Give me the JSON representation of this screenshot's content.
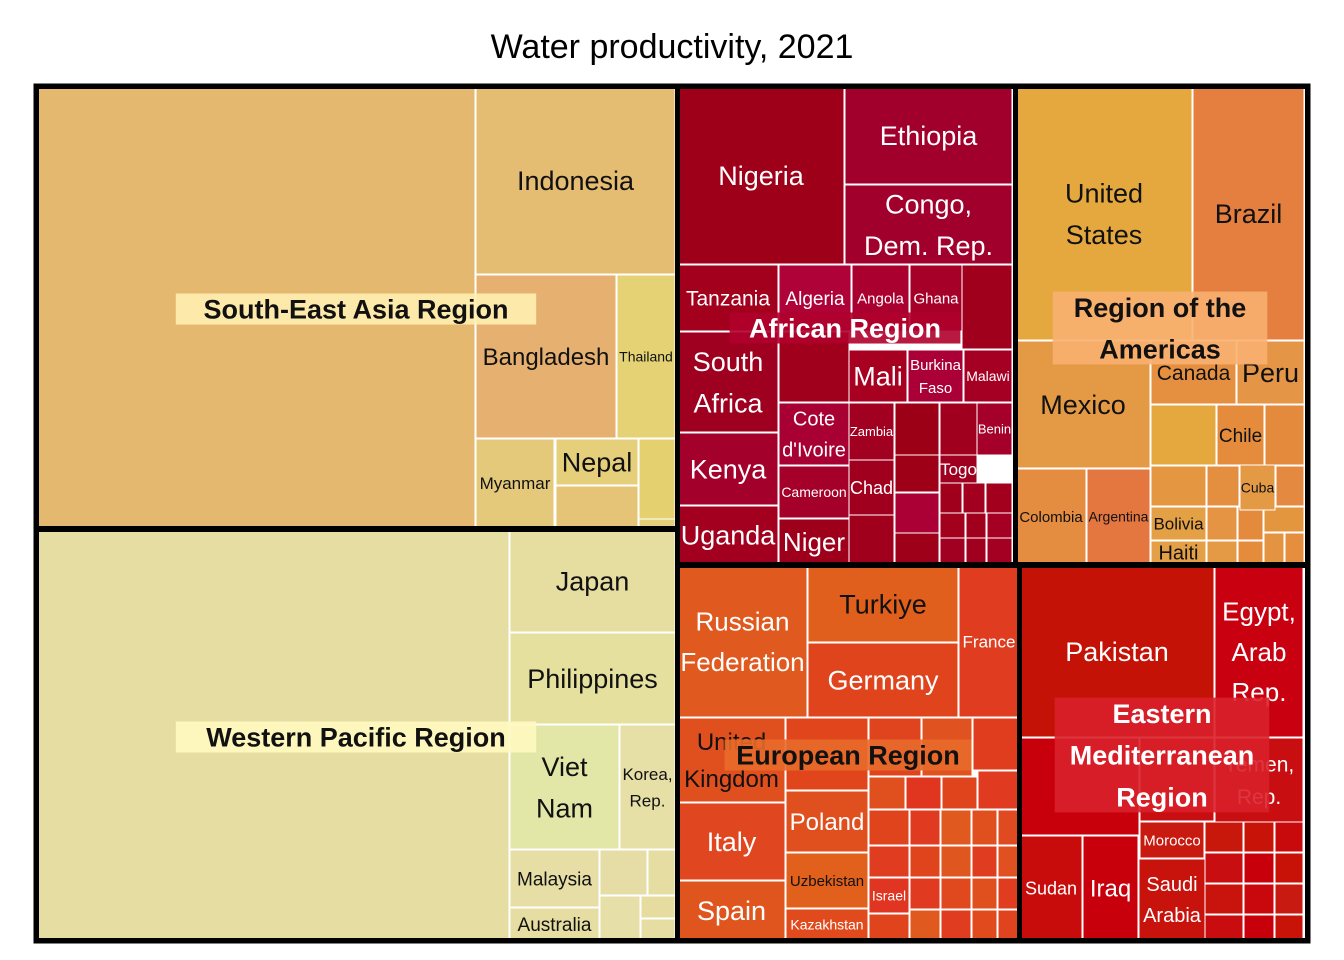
{
  "chart_data": {
    "type": "treemap",
    "title": "Water productivity, 2021",
    "regions": [
      {
        "name": "South-East Asia Region",
        "color": "#e5b870",
        "countries": [
          {
            "name": "",
            "color": "#e5b870"
          },
          {
            "name": "Indonesia",
            "color": "#e5bd72"
          },
          {
            "name": "Bangladesh",
            "color": "#e5b070"
          },
          {
            "name": "Thailand",
            "color": "#e5d274"
          },
          {
            "name": "Myanmar",
            "color": "#e5c97a"
          },
          {
            "name": "Nepal",
            "color": "#e5cf7b"
          }
        ]
      },
      {
        "name": "Western Pacific Region",
        "color": "#e6dda2",
        "countries": [
          {
            "name": "",
            "color": "#e6dda2"
          },
          {
            "name": "Japan",
            "color": "#e6dda0"
          },
          {
            "name": "Philippines",
            "color": "#e6e09e"
          },
          {
            "name": "Viet Nam",
            "color": "#e2e6a7"
          },
          {
            "name": "Korea, Rep.",
            "color": "#e6dfa6"
          },
          {
            "name": "Malaysia",
            "color": "#e6dea4"
          },
          {
            "name": "Australia",
            "color": "#e6dda2"
          }
        ]
      },
      {
        "name": "African Region",
        "color": "#a3001e",
        "countries": [
          {
            "name": "Nigeria",
            "color": "#9f0019"
          },
          {
            "name": "Ethiopia",
            "color": "#a2002c"
          },
          {
            "name": "Congo, Dem. Rep.",
            "color": "#a1002c"
          },
          {
            "name": "Tanzania",
            "color": "#a2001c"
          },
          {
            "name": "Algeria",
            "color": "#ae0238"
          },
          {
            "name": "Angola",
            "color": "#a90030"
          },
          {
            "name": "Ghana",
            "color": "#a60029"
          },
          {
            "name": "South Africa",
            "color": "#9f0020"
          },
          {
            "name": "Mali",
            "color": "#a80020"
          },
          {
            "name": "Burkina Faso",
            "color": "#aa0037"
          },
          {
            "name": "Malawi",
            "color": "#a50024"
          },
          {
            "name": "Cote d'Ivoire",
            "color": "#a90033"
          },
          {
            "name": "Zambia",
            "color": "#a20020"
          },
          {
            "name": "Benin",
            "color": "#a50029"
          },
          {
            "name": "Kenya",
            "color": "#a3002c"
          },
          {
            "name": "Cameroon",
            "color": "#a4002a"
          },
          {
            "name": "Chad",
            "color": "#a0001e"
          },
          {
            "name": "Togo",
            "color": "#a00020"
          },
          {
            "name": "Uganda",
            "color": "#a2001e"
          },
          {
            "name": "Niger",
            "color": "#9e001c"
          }
        ]
      },
      {
        "name": "Region of the Americas",
        "color": "#e48a3e",
        "countries": [
          {
            "name": "United States",
            "color": "#e4a83e"
          },
          {
            "name": "Brazil",
            "color": "#e47f40"
          },
          {
            "name": "Mexico",
            "color": "#e49a44"
          },
          {
            "name": "Canada",
            "color": "#e49040"
          },
          {
            "name": "Peru",
            "color": "#e49545"
          },
          {
            "name": "Chile",
            "color": "#e48c3c"
          },
          {
            "name": "Cuba",
            "color": "#e49944"
          },
          {
            "name": "Colombia",
            "color": "#e48c3f"
          },
          {
            "name": "Argentina",
            "color": "#e47640"
          },
          {
            "name": "Bolivia",
            "color": "#e4a045"
          },
          {
            "name": "Haiti",
            "color": "#e4a047"
          }
        ]
      },
      {
        "name": "European Region",
        "color": "#e04f22",
        "countries": [
          {
            "name": "Russian Federation",
            "color": "#e05a1f"
          },
          {
            "name": "Turkiye",
            "color": "#e05f1c"
          },
          {
            "name": "Germany",
            "color": "#e0441c"
          },
          {
            "name": "France",
            "color": "#e03c20"
          },
          {
            "name": "United Kingdom",
            "color": "#e04f1e"
          },
          {
            "name": "Italy",
            "color": "#e04620"
          },
          {
            "name": "Spain",
            "color": "#e0551e"
          },
          {
            "name": "Poland",
            "color": "#e0501f"
          },
          {
            "name": "Uzbekistan",
            "color": "#e0601c"
          },
          {
            "name": "Kazakhstan",
            "color": "#e04a1d"
          },
          {
            "name": "Israel",
            "color": "#e03520"
          }
        ]
      },
      {
        "name": "Eastern Mediterranean Region",
        "color": "#c8100a",
        "countries": [
          {
            "name": "Pakistan",
            "color": "#c51207"
          },
          {
            "name": "Egypt, Arab Rep.",
            "color": "#c80010"
          },
          {
            "name": "Yemen, Rep.",
            "color": "#c80e10"
          },
          {
            "name": "Morocco",
            "color": "#c81a10"
          },
          {
            "name": "Sudan",
            "color": "#c80c0c"
          },
          {
            "name": "Iraq",
            "color": "#c8000c"
          },
          {
            "name": "Saudi Arabia",
            "color": "#c8120c"
          }
        ]
      }
    ]
  }
}
